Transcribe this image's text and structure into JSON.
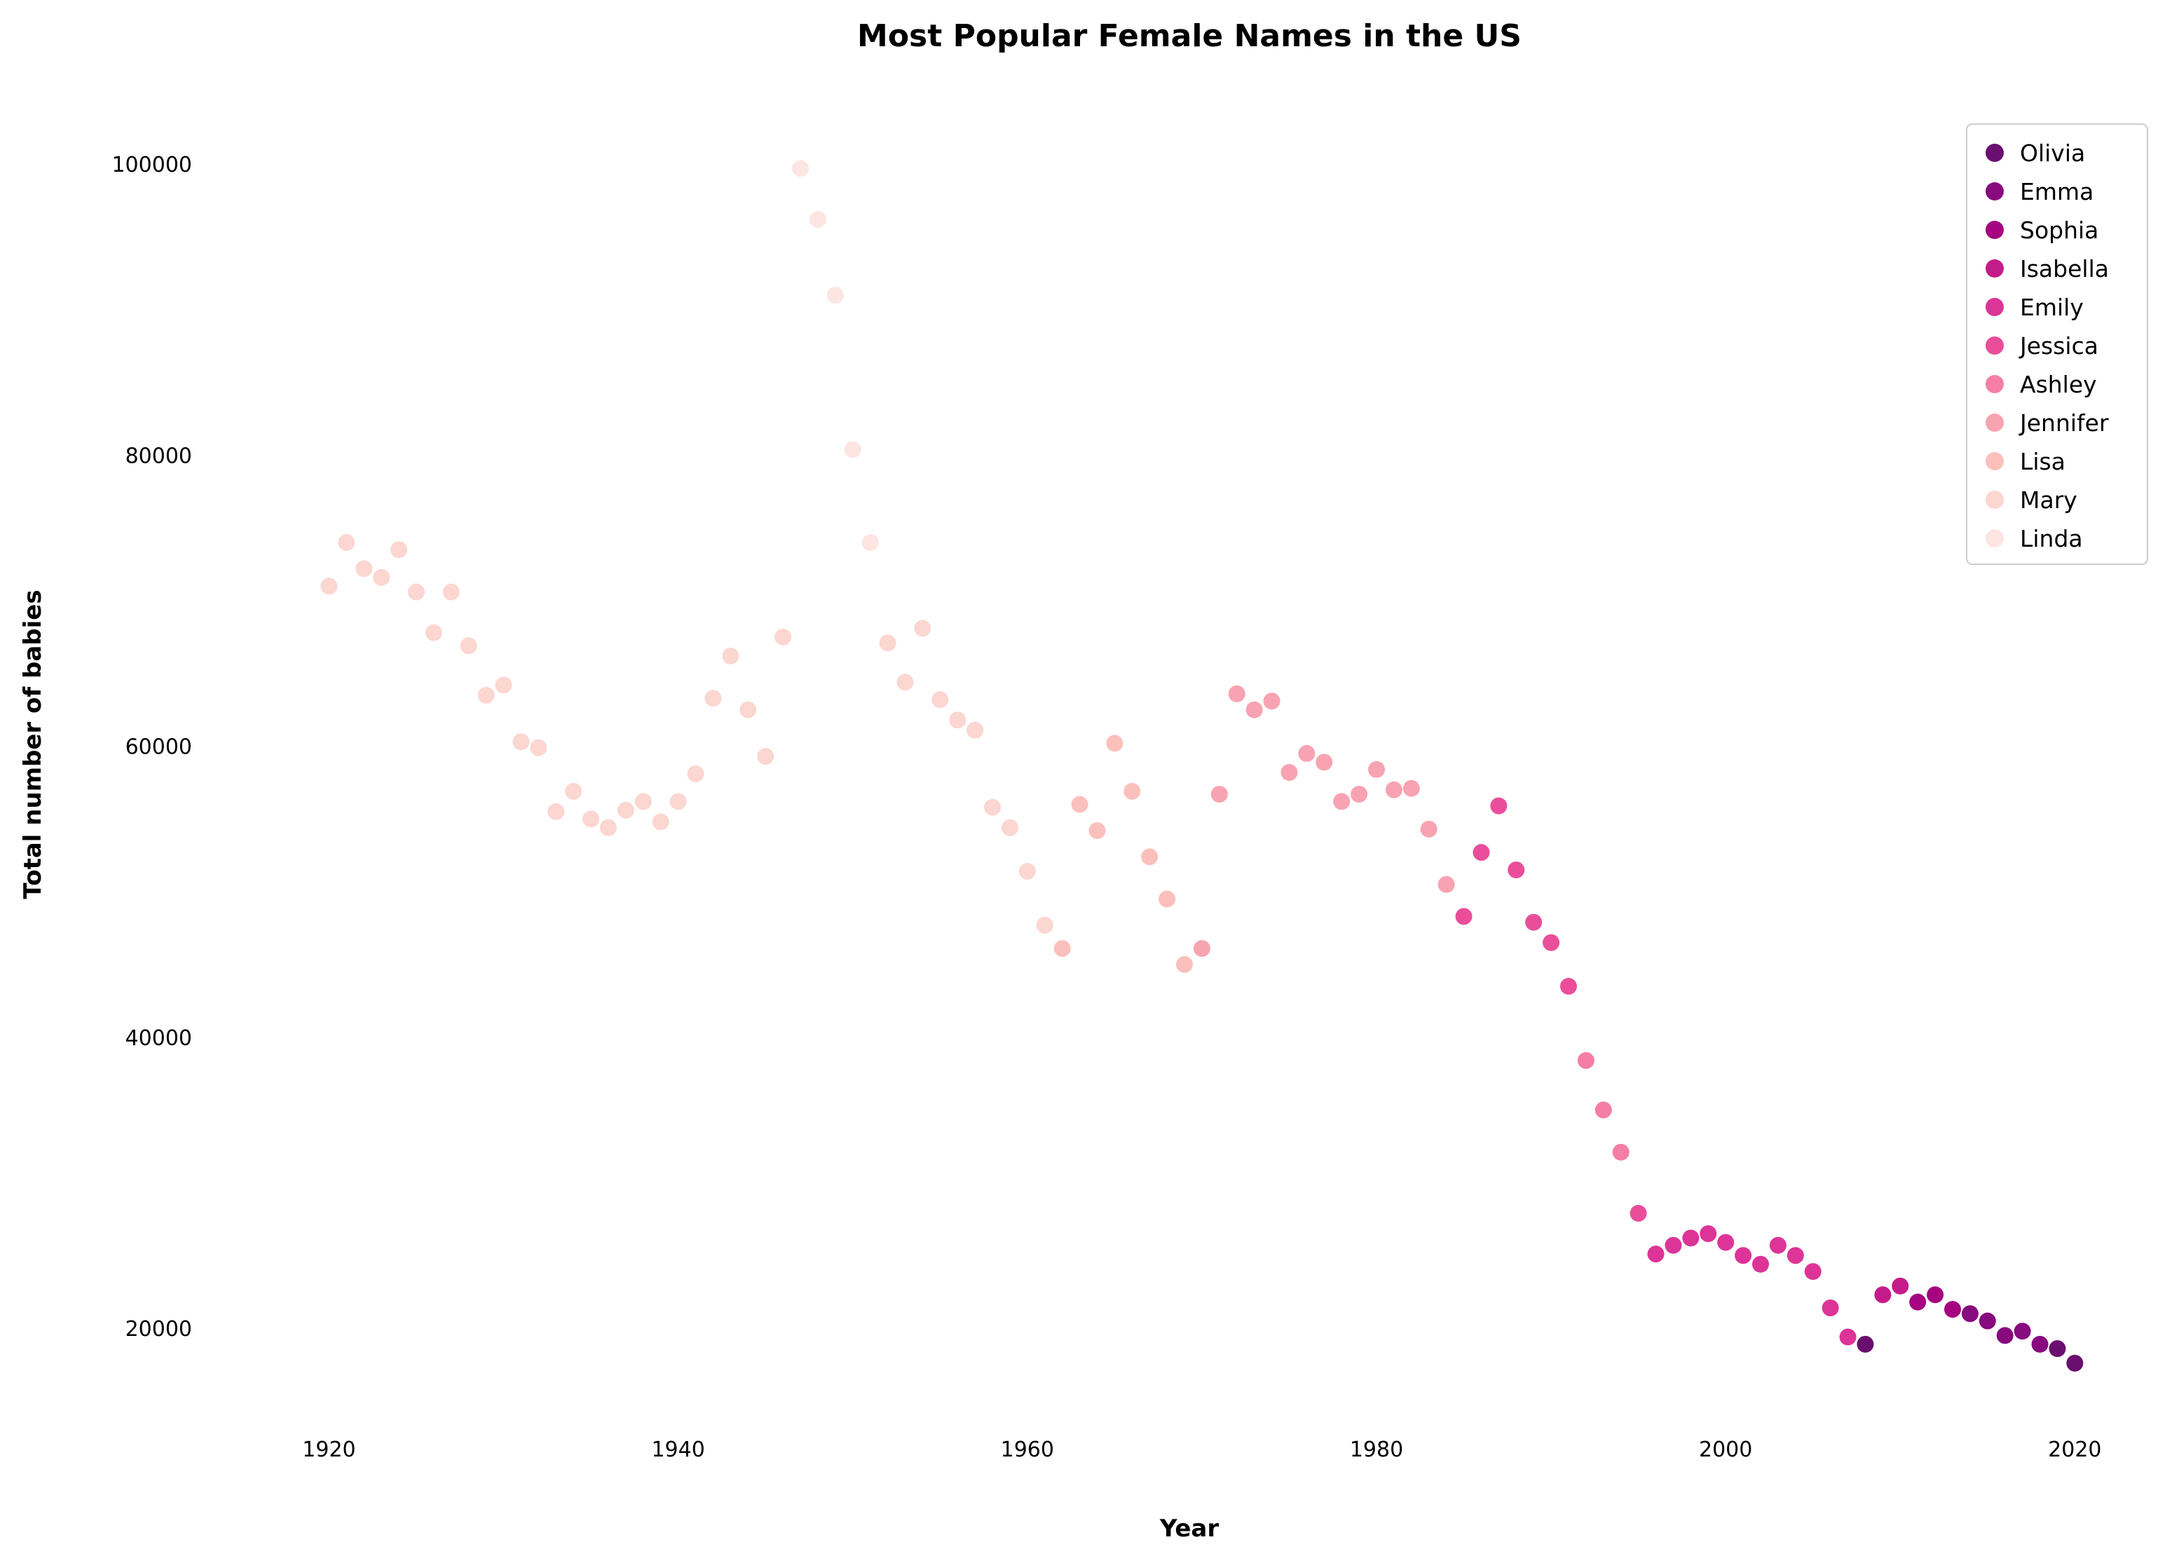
{
  "chart_data": {
    "type": "scatter",
    "title": "Most Popular Female Names in the US",
    "xlabel": "Year",
    "ylabel": "Total number of babies",
    "xlim": [
      1914,
      2024
    ],
    "ylim": [
      13500,
      105500
    ],
    "xticks": [
      1920,
      1940,
      1960,
      1980,
      2000,
      2020
    ],
    "yticks": [
      20000,
      40000,
      60000,
      80000,
      100000
    ],
    "xtick_labels": [
      "1920",
      "1940",
      "1960",
      "1980",
      "2000",
      "2020"
    ],
    "ytick_labels": [
      "20000",
      "40000",
      "60000",
      "80000",
      "100000"
    ],
    "grid": false,
    "legend_position": "top-right",
    "series": [
      {
        "name": "Olivia",
        "color": "#6a0f70",
        "points": [
          [
            2008,
            18900
          ],
          [
            2019,
            18600
          ],
          [
            2020,
            17600
          ]
        ]
      },
      {
        "name": "Emma",
        "color": "#870b7e",
        "points": [
          [
            2014,
            21000
          ],
          [
            2015,
            20500
          ],
          [
            2016,
            19500
          ],
          [
            2017,
            19800
          ],
          [
            2018,
            18900
          ]
        ]
      },
      {
        "name": "Sophia",
        "color": "#a5037f",
        "points": [
          [
            2011,
            21800
          ],
          [
            2012,
            22300
          ],
          [
            2013,
            21300
          ]
        ]
      },
      {
        "name": "Isabella",
        "color": "#c51b8a",
        "points": [
          [
            2009,
            22300
          ],
          [
            2010,
            22900
          ]
        ]
      },
      {
        "name": "Emily",
        "color": "#dd3497",
        "points": [
          [
            1996,
            25100
          ],
          [
            1997,
            25700
          ],
          [
            1998,
            26200
          ],
          [
            1999,
            26500
          ],
          [
            2000,
            25900
          ],
          [
            2001,
            25000
          ],
          [
            2002,
            24400
          ],
          [
            2003,
            25700
          ],
          [
            2004,
            25000
          ],
          [
            2005,
            23900
          ],
          [
            2006,
            21400
          ],
          [
            2007,
            19400
          ]
        ]
      },
      {
        "name": "Jessica",
        "color": "#ea4e9b",
        "points": [
          [
            1985,
            48300
          ],
          [
            1986,
            52700
          ],
          [
            1987,
            55900
          ],
          [
            1988,
            51500
          ],
          [
            1989,
            47900
          ],
          [
            1990,
            46500
          ],
          [
            1991,
            43500
          ],
          [
            1995,
            27900
          ]
        ]
      },
      {
        "name": "Ashley",
        "color": "#f47ea6",
        "points": [
          [
            1992,
            38400
          ],
          [
            1993,
            35000
          ],
          [
            1994,
            32100
          ]
        ]
      },
      {
        "name": "Jennifer",
        "color": "#f8a3b1",
        "points": [
          [
            1970,
            46100
          ],
          [
            1971,
            56700
          ],
          [
            1972,
            63600
          ],
          [
            1973,
            62500
          ],
          [
            1974,
            63100
          ],
          [
            1975,
            58200
          ],
          [
            1976,
            59500
          ],
          [
            1977,
            58900
          ],
          [
            1978,
            56200
          ],
          [
            1979,
            56700
          ],
          [
            1980,
            58400
          ],
          [
            1981,
            57000
          ],
          [
            1982,
            57100
          ],
          [
            1983,
            54300
          ],
          [
            1984,
            50500
          ]
        ]
      },
      {
        "name": "Lisa",
        "color": "#fbc0bc",
        "points": [
          [
            1962,
            46100
          ],
          [
            1963,
            56000
          ],
          [
            1964,
            54200
          ],
          [
            1965,
            60200
          ],
          [
            1966,
            56900
          ],
          [
            1967,
            52400
          ],
          [
            1968,
            49500
          ],
          [
            1969,
            45000
          ]
        ]
      },
      {
        "name": "Mary",
        "color": "#fcd6d0",
        "points": [
          [
            1920,
            71000
          ],
          [
            1921,
            74000
          ],
          [
            1922,
            72200
          ],
          [
            1923,
            71600
          ],
          [
            1924,
            73500
          ],
          [
            1925,
            70600
          ],
          [
            1926,
            67800
          ],
          [
            1927,
            70600
          ],
          [
            1928,
            66900
          ],
          [
            1929,
            63500
          ],
          [
            1930,
            64200
          ],
          [
            1931,
            60300
          ],
          [
            1932,
            59900
          ],
          [
            1933,
            55500
          ],
          [
            1934,
            56900
          ],
          [
            1935,
            55000
          ],
          [
            1936,
            54400
          ],
          [
            1937,
            55600
          ],
          [
            1938,
            56200
          ],
          [
            1939,
            54800
          ],
          [
            1940,
            56200
          ],
          [
            1941,
            58100
          ],
          [
            1942,
            63300
          ],
          [
            1943,
            66200
          ],
          [
            1944,
            62500
          ],
          [
            1945,
            59300
          ],
          [
            1946,
            67500
          ],
          [
            1952,
            67100
          ],
          [
            1953,
            64400
          ],
          [
            1954,
            68100
          ],
          [
            1955,
            63200
          ],
          [
            1956,
            61800
          ],
          [
            1957,
            61100
          ],
          [
            1958,
            55800
          ],
          [
            1959,
            54400
          ],
          [
            1960,
            51400
          ],
          [
            1961,
            47700
          ]
        ]
      },
      {
        "name": "Linda",
        "color": "#fde5e2",
        "points": [
          [
            1947,
            99700
          ],
          [
            1948,
            96200
          ],
          [
            1949,
            91000
          ],
          [
            1950,
            80400
          ],
          [
            1951,
            74000
          ]
        ]
      }
    ]
  }
}
